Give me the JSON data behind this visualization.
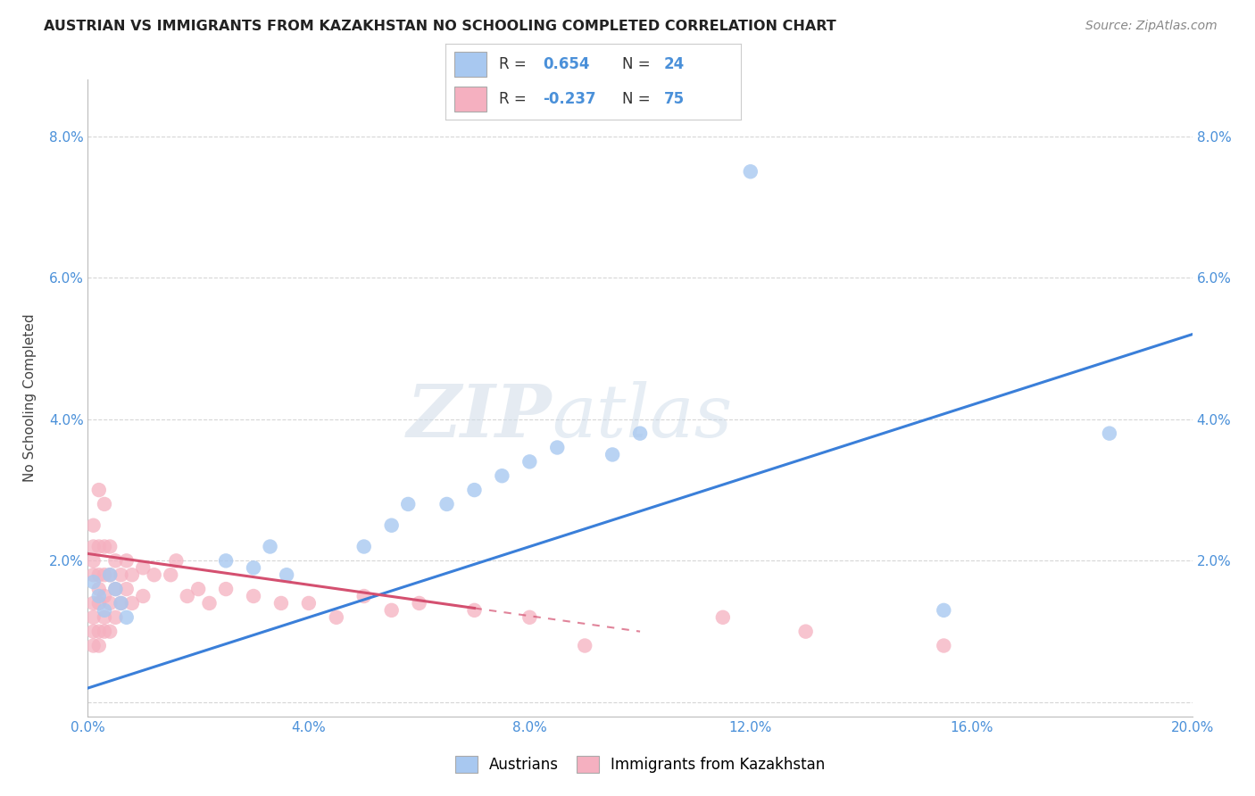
{
  "title": "AUSTRIAN VS IMMIGRANTS FROM KAZAKHSTAN NO SCHOOLING COMPLETED CORRELATION CHART",
  "source": "Source: ZipAtlas.com",
  "ylabel_label": "No Schooling Completed",
  "xmin": 0.0,
  "xmax": 0.2,
  "ymin": -0.002,
  "ymax": 0.088,
  "xticks": [
    0.0,
    0.04,
    0.08,
    0.12,
    0.16,
    0.2
  ],
  "xtick_labels": [
    "0.0%",
    "4.0%",
    "8.0%",
    "12.0%",
    "16.0%",
    "20.0%"
  ],
  "ytick_positions": [
    0.0,
    0.02,
    0.04,
    0.06,
    0.08
  ],
  "ytick_labels": [
    "",
    "2.0%",
    "4.0%",
    "6.0%",
    "8.0%"
  ],
  "color_austrians": "#a8c8f0",
  "color_kazakhstan": "#f5b0c0",
  "color_line_austrians": "#3a7fd9",
  "color_line_kazakhstan": "#d45070",
  "watermark_zip": "ZIP",
  "watermark_atlas": "atlas",
  "aus_line_x0": 0.0,
  "aus_line_y0": 0.002,
  "aus_line_x1": 0.2,
  "aus_line_y1": 0.052,
  "kaz_line_x0": 0.0,
  "kaz_line_y0": 0.021,
  "kaz_line_x1": 0.1,
  "kaz_line_y1": 0.01,
  "kaz_line_solid_end": 0.07,
  "austrians_x": [
    0.001,
    0.002,
    0.003,
    0.004,
    0.005,
    0.006,
    0.007,
    0.025,
    0.03,
    0.033,
    0.036,
    0.05,
    0.055,
    0.058,
    0.065,
    0.07,
    0.075,
    0.08,
    0.085,
    0.095,
    0.1,
    0.12,
    0.155,
    0.185
  ],
  "austrians_y": [
    0.017,
    0.015,
    0.013,
    0.018,
    0.016,
    0.014,
    0.012,
    0.02,
    0.019,
    0.022,
    0.018,
    0.022,
    0.025,
    0.028,
    0.028,
    0.03,
    0.032,
    0.034,
    0.036,
    0.035,
    0.038,
    0.075,
    0.013,
    0.038
  ],
  "kazakhstan_x": [
    0.001,
    0.001,
    0.001,
    0.001,
    0.001,
    0.001,
    0.001,
    0.001,
    0.002,
    0.002,
    0.002,
    0.002,
    0.002,
    0.002,
    0.002,
    0.003,
    0.003,
    0.003,
    0.003,
    0.003,
    0.003,
    0.004,
    0.004,
    0.004,
    0.004,
    0.005,
    0.005,
    0.005,
    0.006,
    0.006,
    0.007,
    0.007,
    0.008,
    0.008,
    0.01,
    0.01,
    0.012,
    0.015,
    0.016,
    0.018,
    0.02,
    0.022,
    0.025,
    0.03,
    0.035,
    0.04,
    0.045,
    0.05,
    0.055,
    0.06,
    0.07,
    0.08,
    0.09,
    0.115,
    0.13,
    0.155
  ],
  "kazakhstan_y": [
    0.008,
    0.01,
    0.012,
    0.014,
    0.018,
    0.02,
    0.022,
    0.025,
    0.008,
    0.01,
    0.014,
    0.016,
    0.018,
    0.022,
    0.03,
    0.01,
    0.012,
    0.015,
    0.018,
    0.022,
    0.028,
    0.01,
    0.014,
    0.018,
    0.022,
    0.012,
    0.016,
    0.02,
    0.014,
    0.018,
    0.016,
    0.02,
    0.014,
    0.018,
    0.015,
    0.019,
    0.018,
    0.018,
    0.02,
    0.015,
    0.016,
    0.014,
    0.016,
    0.015,
    0.014,
    0.014,
    0.012,
    0.015,
    0.013,
    0.014,
    0.013,
    0.012,
    0.008,
    0.012,
    0.01,
    0.008
  ]
}
